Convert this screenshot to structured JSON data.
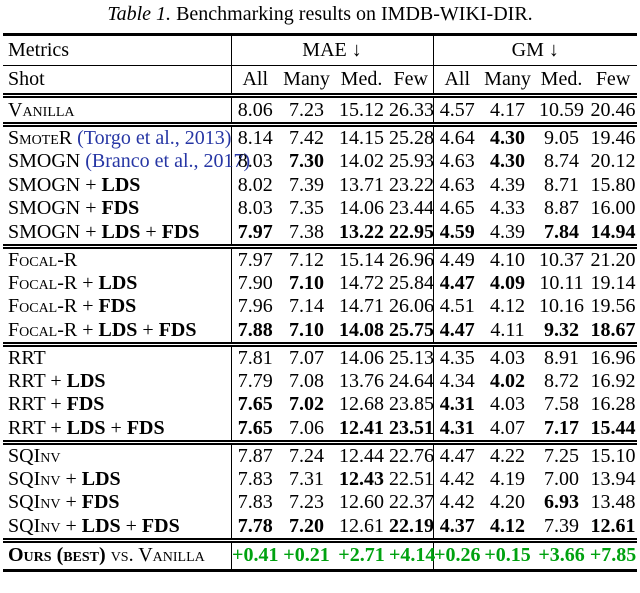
{
  "caption": {
    "label": "Table 1.",
    "text": "Benchmarking results on IMDB-WIKI-DIR."
  },
  "colors": {
    "citation_blue": "#2636a4",
    "improvement_green": "#00a210",
    "rule_black": "#000000"
  },
  "columns": {
    "metrics": "Metrics",
    "shot": "Shot",
    "groups": [
      "MAE ↓",
      "GM ↓"
    ],
    "subcolumns": [
      "All",
      "Many",
      "Med.",
      "Few"
    ]
  },
  "sections": [
    {
      "rows": [
        {
          "method": [
            {
              "t": "Vanilla",
              "s": "sc"
            }
          ],
          "values": [
            "8.06",
            "7.23",
            "15.12",
            "26.33",
            "4.57",
            "4.17",
            "10.59",
            "20.46"
          ],
          "bold": [
            0,
            0,
            0,
            0,
            0,
            0,
            0,
            0
          ]
        }
      ]
    },
    {
      "rows": [
        {
          "method": [
            {
              "t": "SmoteR",
              "s": "sc"
            },
            {
              "t": " ",
              "s": "plain"
            },
            {
              "t": "(Torgo et al., 2013)",
              "s": "cite"
            }
          ],
          "values": [
            "8.14",
            "7.42",
            "14.15",
            "25.28",
            "4.64",
            "4.30",
            "9.05",
            "19.46"
          ],
          "bold": [
            0,
            0,
            0,
            0,
            0,
            1,
            0,
            0
          ]
        },
        {
          "method": [
            {
              "t": "SMOGN",
              "s": "sc"
            },
            {
              "t": " ",
              "s": "plain"
            },
            {
              "t": "(Branco et al., 2017)",
              "s": "cite"
            }
          ],
          "values": [
            "8.03",
            "7.30",
            "14.02",
            "25.93",
            "4.63",
            "4.30",
            "8.74",
            "20.12"
          ],
          "bold": [
            0,
            1,
            0,
            0,
            0,
            1,
            0,
            0
          ]
        },
        {
          "method": [
            {
              "t": "SMOGN + ",
              "s": "sc"
            },
            {
              "t": "LDS",
              "s": "b"
            }
          ],
          "values": [
            "8.02",
            "7.39",
            "13.71",
            "23.22",
            "4.63",
            "4.39",
            "8.71",
            "15.80"
          ],
          "bold": [
            0,
            0,
            0,
            0,
            0,
            0,
            0,
            0
          ]
        },
        {
          "method": [
            {
              "t": "SMOGN + ",
              "s": "sc"
            },
            {
              "t": "FDS",
              "s": "b"
            }
          ],
          "values": [
            "8.03",
            "7.35",
            "14.06",
            "23.44",
            "4.65",
            "4.33",
            "8.87",
            "16.00"
          ],
          "bold": [
            0,
            0,
            0,
            0,
            0,
            0,
            0,
            0
          ]
        },
        {
          "method": [
            {
              "t": "SMOGN + ",
              "s": "sc"
            },
            {
              "t": "LDS",
              "s": "b"
            },
            {
              "t": " + ",
              "s": "plain"
            },
            {
              "t": "FDS",
              "s": "b"
            }
          ],
          "values": [
            "7.97",
            "7.38",
            "13.22",
            "22.95",
            "4.59",
            "4.39",
            "7.84",
            "14.94"
          ],
          "bold": [
            1,
            0,
            1,
            1,
            1,
            0,
            1,
            1
          ]
        }
      ]
    },
    {
      "rows": [
        {
          "method": [
            {
              "t": "Focal-R",
              "s": "sc"
            }
          ],
          "values": [
            "7.97",
            "7.12",
            "15.14",
            "26.96",
            "4.49",
            "4.10",
            "10.37",
            "21.20"
          ],
          "bold": [
            0,
            0,
            0,
            0,
            0,
            0,
            0,
            0
          ]
        },
        {
          "method": [
            {
              "t": "Focal-R + ",
              "s": "sc"
            },
            {
              "t": "LDS",
              "s": "b"
            }
          ],
          "values": [
            "7.90",
            "7.10",
            "14.72",
            "25.84",
            "4.47",
            "4.09",
            "10.11",
            "19.14"
          ],
          "bold": [
            0,
            1,
            0,
            0,
            1,
            1,
            0,
            0
          ]
        },
        {
          "method": [
            {
              "t": "Focal-R + ",
              "s": "sc"
            },
            {
              "t": "FDS",
              "s": "b"
            }
          ],
          "values": [
            "7.96",
            "7.14",
            "14.71",
            "26.06",
            "4.51",
            "4.12",
            "10.16",
            "19.56"
          ],
          "bold": [
            0,
            0,
            0,
            0,
            0,
            0,
            0,
            0
          ]
        },
        {
          "method": [
            {
              "t": "Focal-R + ",
              "s": "sc"
            },
            {
              "t": "LDS",
              "s": "b"
            },
            {
              "t": " + ",
              "s": "plain"
            },
            {
              "t": "FDS",
              "s": "b"
            }
          ],
          "values": [
            "7.88",
            "7.10",
            "14.08",
            "25.75",
            "4.47",
            "4.11",
            "9.32",
            "18.67"
          ],
          "bold": [
            1,
            1,
            1,
            1,
            1,
            0,
            1,
            1
          ]
        }
      ]
    },
    {
      "rows": [
        {
          "method": [
            {
              "t": "RRT",
              "s": "sc"
            }
          ],
          "values": [
            "7.81",
            "7.07",
            "14.06",
            "25.13",
            "4.35",
            "4.03",
            "8.91",
            "16.96"
          ],
          "bold": [
            0,
            0,
            0,
            0,
            0,
            0,
            0,
            0
          ]
        },
        {
          "method": [
            {
              "t": "RRT + ",
              "s": "sc"
            },
            {
              "t": "LDS",
              "s": "b"
            }
          ],
          "values": [
            "7.79",
            "7.08",
            "13.76",
            "24.64",
            "4.34",
            "4.02",
            "8.72",
            "16.92"
          ],
          "bold": [
            0,
            0,
            0,
            0,
            0,
            1,
            0,
            0
          ]
        },
        {
          "method": [
            {
              "t": "RRT + ",
              "s": "sc"
            },
            {
              "t": "FDS",
              "s": "b"
            }
          ],
          "values": [
            "7.65",
            "7.02",
            "12.68",
            "23.85",
            "4.31",
            "4.03",
            "7.58",
            "16.28"
          ],
          "bold": [
            1,
            1,
            0,
            0,
            1,
            0,
            0,
            0
          ]
        },
        {
          "method": [
            {
              "t": "RRT + ",
              "s": "sc"
            },
            {
              "t": "LDS",
              "s": "b"
            },
            {
              "t": " + ",
              "s": "plain"
            },
            {
              "t": "FDS",
              "s": "b"
            }
          ],
          "values": [
            "7.65",
            "7.06",
            "12.41",
            "23.51",
            "4.31",
            "4.07",
            "7.17",
            "15.44"
          ],
          "bold": [
            1,
            0,
            1,
            1,
            1,
            0,
            1,
            1
          ]
        }
      ]
    },
    {
      "rows": [
        {
          "method": [
            {
              "t": "SQInv",
              "s": "sc"
            }
          ],
          "values": [
            "7.87",
            "7.24",
            "12.44",
            "22.76",
            "4.47",
            "4.22",
            "7.25",
            "15.10"
          ],
          "bold": [
            0,
            0,
            0,
            0,
            0,
            0,
            0,
            0
          ]
        },
        {
          "method": [
            {
              "t": "SQInv + ",
              "s": "sc"
            },
            {
              "t": "LDS",
              "s": "b"
            }
          ],
          "values": [
            "7.83",
            "7.31",
            "12.43",
            "22.51",
            "4.42",
            "4.19",
            "7.00",
            "13.94"
          ],
          "bold": [
            0,
            0,
            1,
            0,
            0,
            0,
            0,
            0
          ]
        },
        {
          "method": [
            {
              "t": "SQInv + ",
              "s": "sc"
            },
            {
              "t": "FDS",
              "s": "b"
            }
          ],
          "values": [
            "7.83",
            "7.23",
            "12.60",
            "22.37",
            "4.42",
            "4.20",
            "6.93",
            "13.48"
          ],
          "bold": [
            0,
            0,
            0,
            0,
            0,
            0,
            1,
            0
          ]
        },
        {
          "method": [
            {
              "t": "SQInv + ",
              "s": "sc"
            },
            {
              "t": "LDS",
              "s": "b"
            },
            {
              "t": " + ",
              "s": "plain"
            },
            {
              "t": "FDS",
              "s": "b"
            }
          ],
          "values": [
            "7.78",
            "7.20",
            "12.61",
            "22.19",
            "4.37",
            "4.12",
            "7.39",
            "12.61"
          ],
          "bold": [
            1,
            1,
            0,
            1,
            1,
            1,
            0,
            1
          ]
        }
      ]
    }
  ],
  "footer": {
    "method": [
      {
        "t": "Ours (best)",
        "s": "scb"
      },
      {
        "t": " vs. ",
        "s": "sc"
      },
      {
        "t": "Vanilla",
        "s": "sc"
      }
    ],
    "values": [
      "+0.41",
      "+0.21",
      "+2.71",
      "+4.14",
      "+0.26",
      "+0.15",
      "+3.66",
      "+7.85"
    ]
  }
}
